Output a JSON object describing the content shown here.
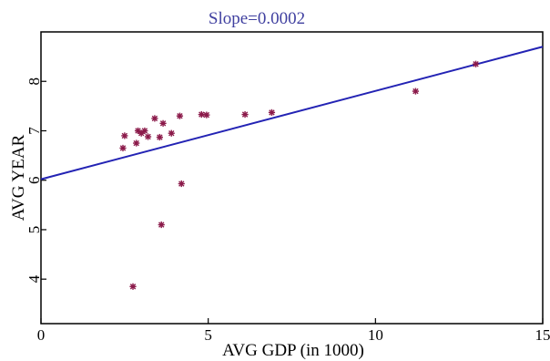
{
  "chart_data": {
    "type": "scatter",
    "title": "Slope=0.0002",
    "xlabel": "AVG GDP (in 1000)",
    "ylabel": "AVG YEAR",
    "xlim": [
      0,
      15
    ],
    "ylim": [
      3.1,
      9.0
    ],
    "x_ticks": [
      "0",
      "5",
      "10",
      "15"
    ],
    "y_ticks": [
      "4",
      "5",
      "6",
      "7",
      "8"
    ],
    "grid": false,
    "colors": {
      "points": "#8b1a4a",
      "trend_line": "#2323b4",
      "title": "#4040a0",
      "axis": "#000000"
    },
    "series": [
      {
        "marker": "asterisk",
        "points": [
          {
            "x": 2.45,
            "y": 6.65
          },
          {
            "x": 2.5,
            "y": 6.9
          },
          {
            "x": 2.75,
            "y": 3.85
          },
          {
            "x": 2.85,
            "y": 6.75
          },
          {
            "x": 2.9,
            "y": 7.0
          },
          {
            "x": 3.0,
            "y": 6.95
          },
          {
            "x": 3.1,
            "y": 7.0
          },
          {
            "x": 3.2,
            "y": 6.88
          },
          {
            "x": 3.4,
            "y": 7.25
          },
          {
            "x": 3.55,
            "y": 6.87
          },
          {
            "x": 3.6,
            "y": 5.1
          },
          {
            "x": 3.65,
            "y": 7.15
          },
          {
            "x": 3.9,
            "y": 6.95
          },
          {
            "x": 4.15,
            "y": 7.3
          },
          {
            "x": 4.2,
            "y": 5.93
          },
          {
            "x": 4.8,
            "y": 7.33
          },
          {
            "x": 4.95,
            "y": 7.32
          },
          {
            "x": 6.1,
            "y": 7.33
          },
          {
            "x": 6.9,
            "y": 7.37
          },
          {
            "x": 11.2,
            "y": 7.8
          },
          {
            "x": 13.0,
            "y": 8.35
          }
        ]
      }
    ],
    "trend_line": {
      "x": [
        0,
        15
      ],
      "y": [
        6.02,
        8.7
      ]
    }
  }
}
